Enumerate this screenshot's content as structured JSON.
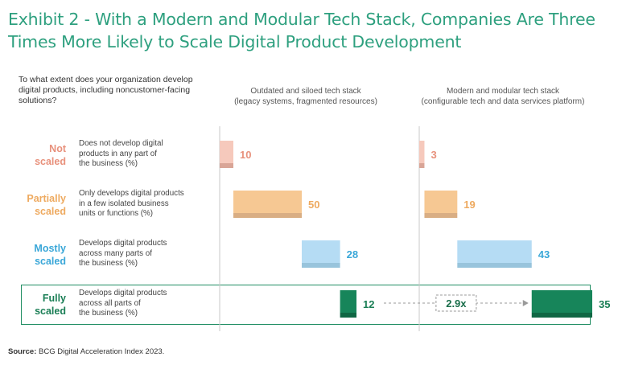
{
  "title": "Exhibit 2 - With a Modern and Modular Tech Stack, Companies Are Three Times More Likely to Scale Digital Product Development",
  "question": "To what extent does your organization develop digital products, including noncustomer-facing solutions?",
  "columns": [
    {
      "line1": "Outdated and siloed tech stack",
      "line2": "(legacy systems, fragmented resources)"
    },
    {
      "line1": "Modern and modular tech stack",
      "line2": "(configurable tech and data services platform)"
    }
  ],
  "categories": [
    {
      "label1": "Not",
      "label2": "scaled",
      "color": "#e8917c",
      "light": "#f6c9bc",
      "dark": "#d9a597",
      "desc": [
        "Does not develop digital",
        "products in any part of",
        "the business (%)"
      ]
    },
    {
      "label1": "Partially",
      "label2": "scaled",
      "color": "#eeaa60",
      "light": "#f6c893",
      "dark": "#d9ae84",
      "desc": [
        "Only develops digital products",
        "in a few isolated business",
        "units or functions (%)"
      ]
    },
    {
      "label1": "Mostly",
      "label2": "scaled",
      "color": "#3aa7d8",
      "light": "#b5dcf4",
      "dark": "#98c4dc",
      "desc": [
        "Develops digital products",
        "across many parts of",
        "the business (%)"
      ]
    },
    {
      "label1": "Fully",
      "label2": "scaled",
      "color": "#1a7e55",
      "light": "#17855a",
      "dark": "#106744",
      "desc": [
        "Develops digital products",
        "across all parts of",
        "the business (%)"
      ]
    }
  ],
  "chart_data": {
    "type": "bar",
    "subtype": "waterfall",
    "categories": [
      "Not scaled",
      "Partially scaled",
      "Mostly scaled",
      "Fully scaled"
    ],
    "series": [
      {
        "name": "Outdated and siloed tech stack",
        "values": [
          10,
          50,
          28,
          12
        ]
      },
      {
        "name": "Modern and modular tech stack",
        "values": [
          3,
          19,
          43,
          35
        ]
      }
    ],
    "annotation": "2.9x",
    "unit": "%"
  },
  "source_label": "Source:",
  "source_text": "BCG Digital Acceleration Index 2023."
}
